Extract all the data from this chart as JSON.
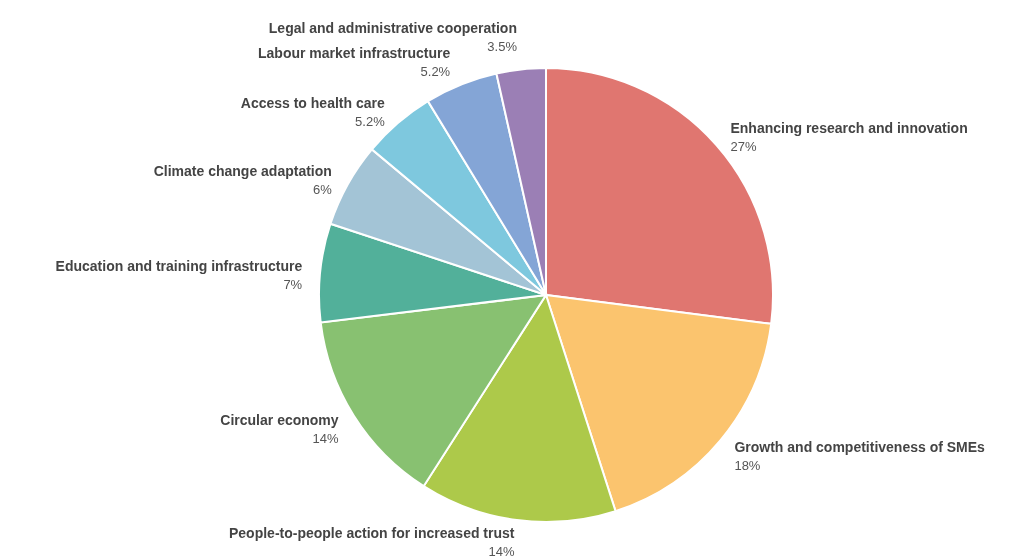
{
  "chart_data": {
    "type": "pie",
    "categories": [
      "Enhancing research and innovation",
      "Growth and competitiveness of SMEs",
      "People-to-people action for increased trust",
      "Circular economy",
      "Education and training infrastructure",
      "Climate change adaptation",
      "Access to health care",
      "Labour market infrastructure",
      "Legal and administrative cooperation"
    ],
    "values": [
      27,
      18,
      14,
      14,
      7,
      6,
      5.2,
      5.2,
      3.5
    ],
    "value_labels": [
      "27%",
      "18%",
      "14%",
      "14%",
      "7%",
      "6%",
      "5.2%",
      "5.2%",
      "3.5%"
    ],
    "colors": [
      "#e07670",
      "#fbc46e",
      "#adc94a",
      "#88c171",
      "#52b09a",
      "#a3c4d6",
      "#7ec8de",
      "#84a5d6",
      "#9b7fb5"
    ],
    "legend": false
  }
}
